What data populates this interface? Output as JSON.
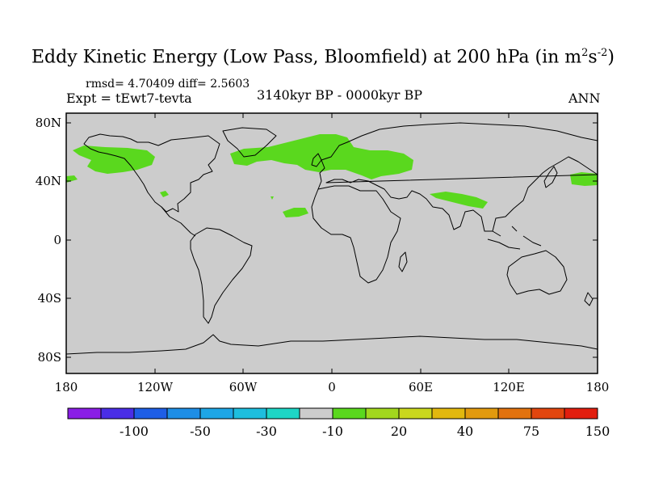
{
  "title": {
    "main": "Eddy Kinetic Energy (Low Pass, Bloomfield) at 200 hPa (in m",
    "sup1": "2",
    "mid": "s",
    "sup2": "-2",
    "end": ")"
  },
  "stats": "rmsd= 4.70409 diff= 2.5603",
  "experiment": "Expt = tEwt7-tevta",
  "period": "3140kyr BP - 0000kyr BP",
  "season": "ANN",
  "lat_labels": [
    "80N",
    "40N",
    "0",
    "40S",
    "80S"
  ],
  "lon_labels": [
    "180",
    "120W",
    "60W",
    "0",
    "60E",
    "120E",
    "180"
  ],
  "colorbar": {
    "colors": [
      "#8a1ee6",
      "#4a2ee6",
      "#1e5ee6",
      "#1e8ee6",
      "#1ea6e6",
      "#1ebede",
      "#1ed6c6",
      "#cccccc",
      "#5ad81e",
      "#a2d81e",
      "#cad81e",
      "#e2b80e",
      "#e29a0e",
      "#e2720e",
      "#e2460e",
      "#e21e0e"
    ],
    "labels": [
      {
        "text": "-100",
        "boundary": 2
      },
      {
        "text": "-50",
        "boundary": 4
      },
      {
        "text": "-30",
        "boundary": 6
      },
      {
        "text": "-10",
        "boundary": 8
      },
      {
        "text": "20",
        "boundary": 10
      },
      {
        "text": "40",
        "boundary": 12
      },
      {
        "text": "75",
        "boundary": 14
      },
      {
        "text": "150",
        "boundary": 16
      }
    ]
  },
  "colors": {
    "ocean_background": "#cccccc",
    "positive_anomaly": "#5ad81e",
    "coastline": "#000000"
  }
}
